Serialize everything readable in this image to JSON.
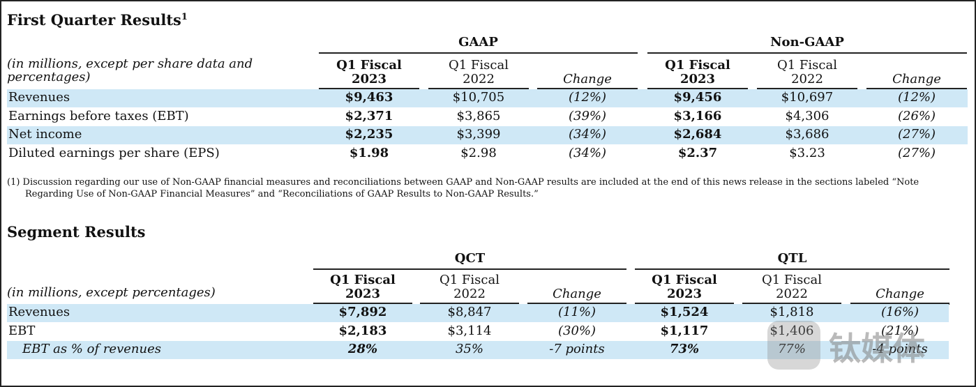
{
  "first_quarter": {
    "title": "First Quarter Results",
    "title_sup": "1",
    "groups": [
      "GAAP",
      "Non-GAAP"
    ],
    "note_header": "(in millions, except per share data and percentages)",
    "columns": [
      [
        "Q1 Fiscal",
        "2023"
      ],
      [
        "Q1 Fiscal",
        "2022"
      ],
      [
        "Change"
      ],
      [
        "Q1 Fiscal",
        "2023"
      ],
      [
        "Q1 Fiscal",
        "2022"
      ],
      [
        "Change"
      ]
    ],
    "rows": [
      [
        "Revenues",
        "$9,463",
        "$10,705",
        "(12%)",
        "$9,456",
        "$10,697",
        "(12%)"
      ],
      [
        "Earnings before taxes (EBT)",
        "$2,371",
        "$3,865",
        "(39%)",
        "$3,166",
        "$4,306",
        "(26%)"
      ],
      [
        "Net income",
        "$2,235",
        "$3,399",
        "(34%)",
        "$2,684",
        "$3,686",
        "(27%)"
      ],
      [
        "Diluted earnings per share (EPS)",
        "$1.98",
        "$2.98",
        "(34%)",
        "$2.37",
        "$3.23",
        "(27%)"
      ]
    ],
    "footnote": "(1) Discussion regarding our use of Non-GAAP financial measures and reconciliations between GAAP and Non-GAAP results are included at the end of this news release in the sections labeled “Note Regarding Use of Non-GAAP Financial Measures” and “Reconciliations of GAAP Results to Non-GAAP Results.”"
  },
  "segment": {
    "title": "Segment Results",
    "groups": [
      "QCT",
      "QTL"
    ],
    "note_header": "(in millions, except percentages)",
    "columns": [
      [
        "Q1 Fiscal",
        "2023"
      ],
      [
        "Q1 Fiscal",
        "2022"
      ],
      [
        "Change"
      ],
      [
        "Q1 Fiscal",
        "2023"
      ],
      [
        "Q1 Fiscal",
        "2022"
      ],
      [
        "Change"
      ]
    ],
    "rows": [
      [
        "Revenues",
        "$7,892",
        "$8,847",
        "(11%)",
        "$1,524",
        "$1,818",
        "(16%)"
      ],
      [
        "EBT",
        "$2,183",
        "$3,114",
        "(30%)",
        "$1,117",
        "$1,406",
        "(21%)"
      ],
      [
        "EBT as % of revenues",
        "28%",
        "35%",
        "-7 points",
        "73%",
        "77%",
        "-4 points"
      ]
    ]
  },
  "watermark": "钛媒体"
}
